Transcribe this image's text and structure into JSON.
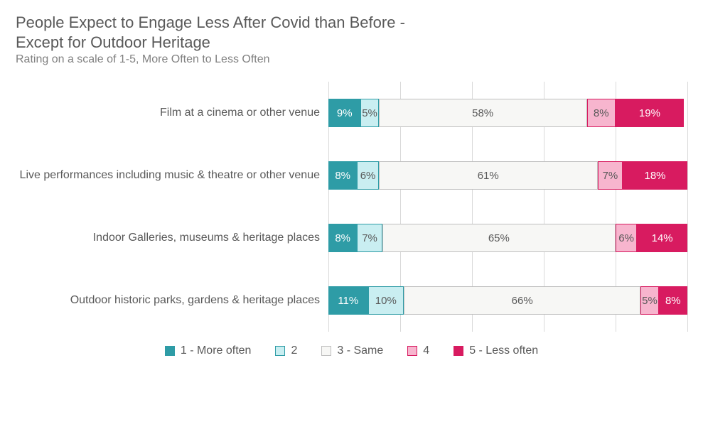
{
  "title_line1": "People Expect to Engage Less After Covid than Before -",
  "title_line2": "Except for Outdoor Heritage",
  "subtitle": "Rating on a scale of  1-5, More Often to Less Often",
  "chart": {
    "type": "stacked-horizontal-bar",
    "background_color": "#ffffff",
    "grid_color": "#d9d9d9",
    "grid_positions_pct": [
      0,
      20,
      40,
      60,
      80,
      100
    ],
    "text_color": "#595959",
    "label_fontsize": 16,
    "value_fontsize": 15,
    "title_fontsize": 22,
    "subtitle_fontsize": 16,
    "series": [
      {
        "key": "s1",
        "label": "1 - More often",
        "fill": "#2e9ca6",
        "border": "#2e9ca6",
        "text": "#ffffff"
      },
      {
        "key": "s2",
        "label": "2",
        "fill": "#c9eef1",
        "border": "#2e9ca6",
        "text": "#595959"
      },
      {
        "key": "s3",
        "label": "3 - Same",
        "fill": "#f7f7f5",
        "border": "#bfbfbf",
        "text": "#595959"
      },
      {
        "key": "s4",
        "label": "4",
        "fill": "#f7b5ce",
        "border": "#d81b60",
        "text": "#595959"
      },
      {
        "key": "s5",
        "label": "5 - Less often",
        "fill": "#d81b60",
        "border": "#d81b60",
        "text": "#ffffff"
      }
    ],
    "categories": [
      {
        "label": "Film at a cinema or other venue",
        "values": {
          "s1": 9,
          "s2": 5,
          "s3": 58,
          "s4": 8,
          "s5": 19
        },
        "display": {
          "s1": "9%",
          "s2": "5%",
          "s3": "58%",
          "s4": "8%",
          "s5": "19%"
        }
      },
      {
        "label": "Live performances including music & theatre or other venue",
        "values": {
          "s1": 8,
          "s2": 6,
          "s3": 61,
          "s4": 7,
          "s5": 18
        },
        "display": {
          "s1": "8%",
          "s2": "6%",
          "s3": "61%",
          "s4": "7%",
          "s5": "18%"
        }
      },
      {
        "label": "Indoor Galleries, museums & heritage places",
        "values": {
          "s1": 8,
          "s2": 7,
          "s3": 65,
          "s4": 6,
          "s5": 14
        },
        "display": {
          "s1": "8%",
          "s2": "7%",
          "s3": "65%",
          "s4": "6%",
          "s5": "14%"
        }
      },
      {
        "label": "Outdoor historic parks, gardens & heritage places",
        "values": {
          "s1": 11,
          "s2": 10,
          "s3": 66,
          "s4": 5,
          "s5": 8
        },
        "display": {
          "s1": "11%",
          "s2": "10%",
          "s3": "66%",
          "s4": "5%",
          "s5": "8%"
        }
      }
    ]
  }
}
